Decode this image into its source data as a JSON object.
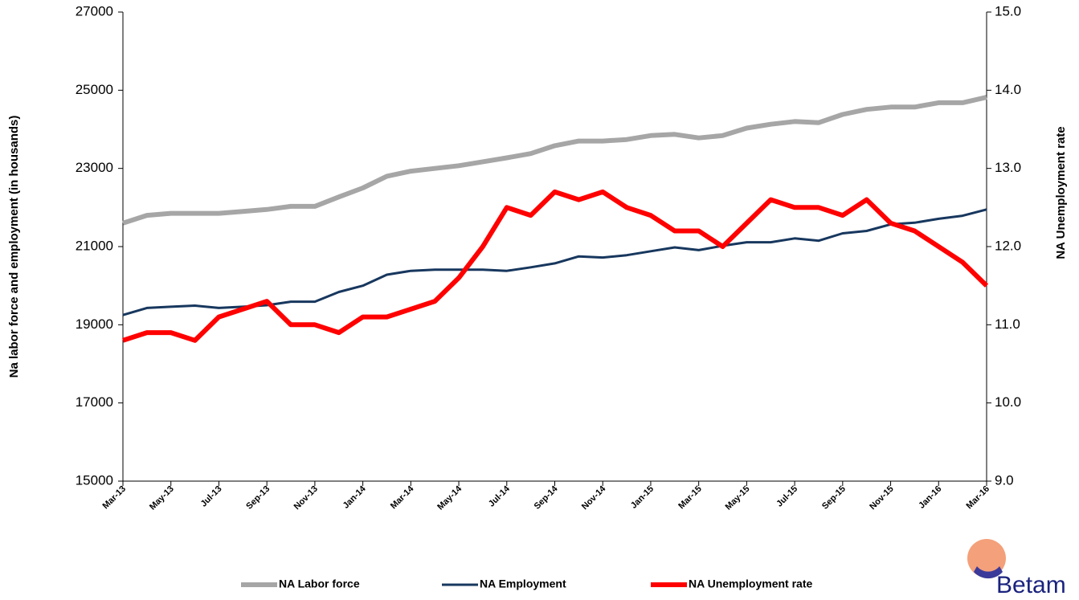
{
  "chart_data": {
    "type": "line",
    "categories": [
      "Mar-13",
      null,
      "May-13",
      null,
      "Jul-13",
      null,
      "Sep-13",
      null,
      "Nov-13",
      null,
      "Jan-14",
      null,
      "Mar-14",
      null,
      "May-14",
      null,
      "Jul-14",
      null,
      "Sep-14",
      null,
      "Nov-14",
      null,
      "Jan-15",
      null,
      "Mar-15",
      null,
      "May-15",
      null,
      "Jul-15",
      null,
      "Sep-15",
      null,
      "Nov-15",
      null,
      "Jan-16",
      null,
      "Mar-16"
    ],
    "series": [
      {
        "name": "NA Labor force",
        "color": "#a6a6a6",
        "width": 6,
        "values": [
          21600,
          21800,
          21850,
          21850,
          21850,
          21900,
          21950,
          22030,
          22030,
          22270,
          22500,
          22800,
          22930,
          23000,
          23070,
          23170,
          23270,
          23380,
          23580,
          23700,
          23700,
          23740,
          23840,
          23870,
          23780,
          23840,
          24030,
          24130,
          24200,
          24170,
          24380,
          24510,
          24570,
          24570,
          24680,
          24680,
          24820
        ]
      },
      {
        "name": "NA Employment",
        "color": "#17375e",
        "width": 3,
        "values": [
          19250,
          19430,
          19460,
          19490,
          19430,
          19460,
          19500,
          19590,
          19590,
          19840,
          20000,
          20280,
          20380,
          20410,
          20410,
          20410,
          20380,
          20470,
          20570,
          20750,
          20720,
          20780,
          20880,
          20980,
          20910,
          21020,
          21110,
          21110,
          21210,
          21150,
          21340,
          21400,
          21570,
          21610,
          21710,
          21790,
          21950
        ]
      },
      {
        "name": "NA Unemployment rate",
        "color": "#ff0000",
        "width": 6,
        "axis": "y2",
        "values": [
          10.8,
          10.9,
          10.9,
          10.8,
          11.1,
          11.2,
          11.3,
          11.0,
          11.0,
          10.9,
          11.1,
          11.1,
          11.2,
          11.3,
          11.6,
          12.0,
          12.5,
          12.4,
          12.7,
          12.6,
          12.7,
          12.5,
          12.4,
          12.2,
          12.2,
          12.0,
          12.3,
          12.6,
          12.5,
          12.5,
          12.4,
          12.6,
          12.3,
          12.2,
          12.0,
          11.8,
          11.5
        ]
      }
    ],
    "ylabel": "Na labor force and employment (in housands)",
    "y2label": "NA Unemployment  rate",
    "ylim": [
      15000,
      27000
    ],
    "yticks": [
      15000,
      17000,
      19000,
      21000,
      23000,
      25000,
      27000
    ],
    "y2lim": [
      9,
      15
    ],
    "y2ticks": [
      {
        "value": 9,
        "label": "9.0"
      },
      {
        "value": 10,
        "label": "10.0"
      },
      {
        "value": 11,
        "label": "11.0"
      },
      {
        "value": 12,
        "label": "12.0"
      },
      {
        "value": 13,
        "label": "13.0"
      },
      {
        "value": 14,
        "label": "14.0"
      },
      {
        "value": 15,
        "label": "15.0"
      }
    ],
    "grid": false,
    "legend": "bottom"
  },
  "logo": "Betam"
}
